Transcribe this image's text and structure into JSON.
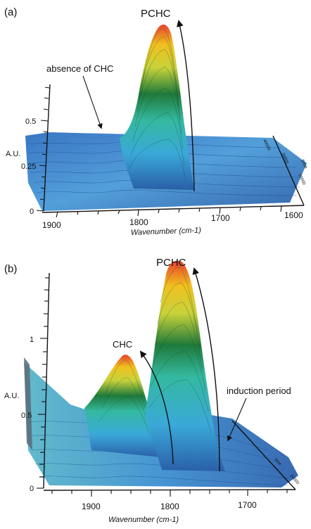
{
  "chart_data": [
    {
      "panel_label": "(a)",
      "type": "area",
      "xlabel": "Wavenumber (cm-1)",
      "ylabel": "A.U.",
      "x_ticks": [
        "1900",
        "1800",
        "1700",
        "1600"
      ],
      "y_ticks": [
        "0",
        "0.25",
        "0.5"
      ],
      "time_ticks": [
        "40000",
        "30000",
        "20000",
        "time"
      ],
      "annotations": [
        "PCHC",
        "absence of CHC"
      ],
      "xlim": [
        1930,
        1590
      ],
      "ylim": [
        0,
        0.75
      ],
      "series": [
        {
          "x": [
            1930,
            1900,
            1870,
            1850,
            1830,
            1810,
            1800,
            1790,
            1780,
            1775,
            1770,
            1765,
            1760,
            1750,
            1740,
            1720,
            1700,
            1680,
            1650,
            1620,
            1600
          ],
          "values": [
            0.2,
            0.2,
            0.2,
            0.2,
            0.21,
            0.24,
            0.32,
            0.47,
            0.6,
            0.62,
            0.6,
            0.53,
            0.4,
            0.26,
            0.21,
            0.2,
            0.2,
            0.2,
            0.2,
            0.2,
            0.2
          ]
        }
      ],
      "color_scale": [
        "#2a5fa8",
        "#3aa8d8",
        "#34b9a0",
        "#1f7a3a",
        "#c8d23a",
        "#f0c020",
        "#e8402a"
      ]
    },
    {
      "panel_label": "(b)",
      "type": "area",
      "xlabel": "Wavenumber (cm-1)",
      "ylabel": "A.U.",
      "x_ticks": [
        "1900",
        "1800",
        "1700"
      ],
      "y_ticks": [
        "0",
        "0.5",
        "1"
      ],
      "time_ticks": [
        "time",
        "20000"
      ],
      "annotations": [
        "PCHC",
        "CHC",
        "induction period"
      ],
      "xlim": [
        1950,
        1650
      ],
      "ylim": [
        0,
        1.6
      ],
      "series": [
        {
          "x": [
            1950,
            1930,
            1900,
            1880,
            1860,
            1850,
            1840,
            1830,
            1820,
            1810,
            1805,
            1800,
            1795,
            1790,
            1785,
            1780,
            1770,
            1760,
            1750,
            1730,
            1700,
            1680,
            1650
          ],
          "values": [
            0.45,
            0.35,
            0.32,
            0.4,
            0.7,
            0.78,
            0.7,
            0.5,
            0.32,
            0.55,
            1.1,
            1.4,
            1.45,
            1.35,
            1.05,
            0.6,
            0.22,
            0.1,
            0.08,
            0.08,
            0.07,
            0.06,
            0.05
          ]
        }
      ],
      "color_scale": [
        "#2a5fa8",
        "#3aa8d8",
        "#34b9a0",
        "#1f7a3a",
        "#c8d23a",
        "#f0c020",
        "#e8402a"
      ]
    }
  ]
}
